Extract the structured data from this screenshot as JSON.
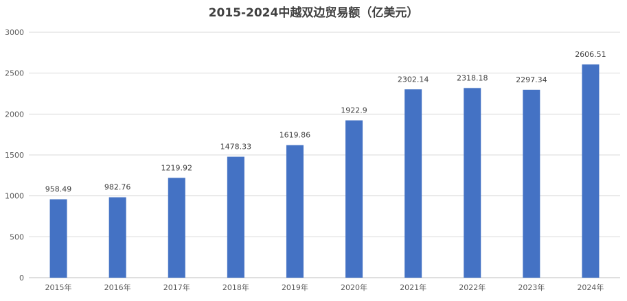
{
  "chart_data": {
    "type": "bar",
    "title": "2015-2024中越双边贸易额（亿美元）",
    "categories": [
      "2015年",
      "2016年",
      "2017年",
      "2018年",
      "2019年",
      "2020年",
      "2021年",
      "2022年",
      "2023年",
      "2024年"
    ],
    "series": [
      {
        "values": [
          958.49,
          982.76,
          1219.92,
          1478.33,
          1619.86,
          1922.9,
          2302.14,
          2318.18,
          2297.34,
          2606.51
        ]
      }
    ],
    "data_labels": [
      "958.49",
      "982.76",
      "1219.92",
      "1478.33",
      "1619.86",
      "1922.9",
      "2302.14",
      "2318.18",
      "2297.34",
      "2606.51"
    ],
    "yticks": [
      "0",
      "500",
      "1000",
      "1500",
      "2000",
      "2500",
      "3000"
    ],
    "ylim": [
      0,
      3000
    ],
    "xlabel": "",
    "ylabel": "",
    "grid": true,
    "legend": "none",
    "colors": {
      "bar": "#4472C4",
      "grid": "#D9D9D9",
      "axis": "#BFBFBF"
    }
  }
}
